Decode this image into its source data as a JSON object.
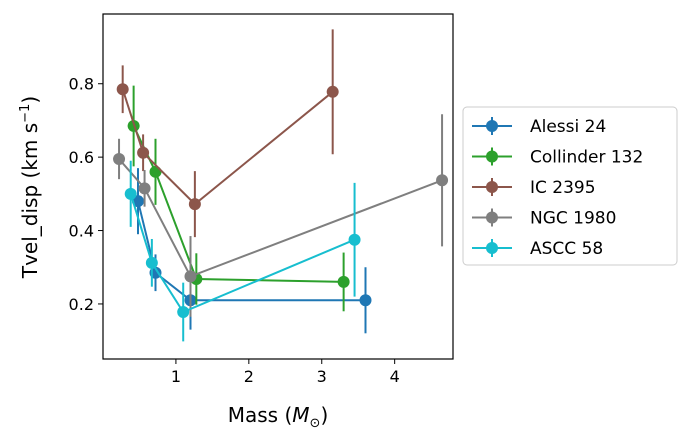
{
  "chart_data": {
    "type": "scatter",
    "title": "",
    "xlabel_text": "Mass (",
    "xlabel_symbol": "M",
    "xlabel_subscript": "⊙",
    "xlabel_close": ")",
    "ylabel_text": "Tvel_disp (km s",
    "ylabel_superscript": "−1",
    "ylabel_close": ")",
    "xlim": [
      0.0,
      4.8
    ],
    "ylim": [
      0.05,
      0.99
    ],
    "xticks": [
      1,
      2,
      3,
      4
    ],
    "yticks": [
      0.2,
      0.4,
      0.6,
      0.8
    ],
    "grid": false,
    "legend_position": "outside-right",
    "series": [
      {
        "name": "Alessi 24",
        "color": "#1f77b4",
        "points": [
          {
            "x": 0.48,
            "y": 0.48,
            "err": 0.09
          },
          {
            "x": 0.72,
            "y": 0.285,
            "err": 0.05
          },
          {
            "x": 1.2,
            "y": 0.21,
            "err": 0.08
          },
          {
            "x": 3.6,
            "y": 0.21,
            "err": 0.09
          }
        ]
      },
      {
        "name": "Collinder 132",
        "color": "#2ca02c",
        "points": [
          {
            "x": 0.42,
            "y": 0.685,
            "err": 0.11
          },
          {
            "x": 0.72,
            "y": 0.56,
            "err": 0.09
          },
          {
            "x": 1.28,
            "y": 0.268,
            "err": 0.07
          },
          {
            "x": 3.3,
            "y": 0.26,
            "err": 0.08
          }
        ]
      },
      {
        "name": "IC 2395",
        "color": "#8c564b",
        "points": [
          {
            "x": 0.27,
            "y": 0.785,
            "err": 0.065
          },
          {
            "x": 0.55,
            "y": 0.612,
            "err": 0.05
          },
          {
            "x": 1.26,
            "y": 0.472,
            "err": 0.09
          },
          {
            "x": 3.15,
            "y": 0.778,
            "err": 0.17
          }
        ]
      },
      {
        "name": "NGC 1980",
        "color": "#7f7f7f",
        "points": [
          {
            "x": 0.22,
            "y": 0.595,
            "err": 0.055
          },
          {
            "x": 0.57,
            "y": 0.515,
            "err": 0.05
          },
          {
            "x": 1.2,
            "y": 0.275,
            "err": 0.11
          },
          {
            "x": 4.65,
            "y": 0.537,
            "err": 0.18
          }
        ]
      },
      {
        "name": "ASCC 58",
        "color": "#17becf",
        "points": [
          {
            "x": 0.38,
            "y": 0.5,
            "err": 0.09
          },
          {
            "x": 0.67,
            "y": 0.312,
            "err": 0.065
          },
          {
            "x": 1.1,
            "y": 0.178,
            "err": 0.08
          },
          {
            "x": 3.45,
            "y": 0.375,
            "err": 0.155
          }
        ]
      }
    ]
  }
}
